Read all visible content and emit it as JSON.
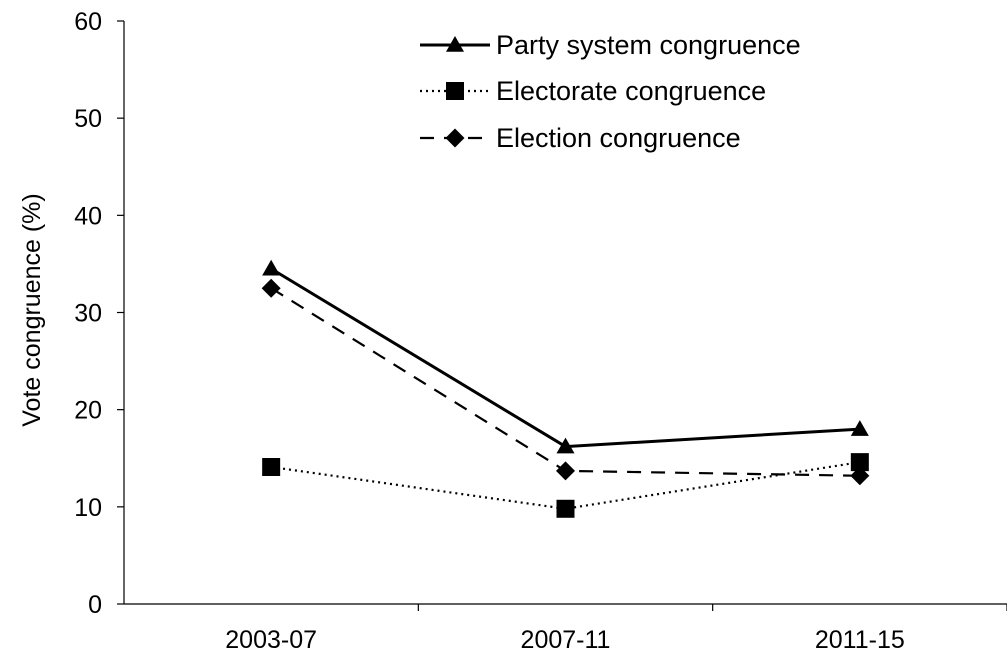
{
  "chart_data": {
    "type": "line",
    "categories": [
      "2003-07",
      "2007-11",
      "2011-15"
    ],
    "ylabel": "Vote congruence (%)",
    "xlabel": "",
    "ylim": [
      0,
      60
    ],
    "yticks": [
      0,
      10,
      20,
      30,
      40,
      50,
      60
    ],
    "grid": false,
    "legend_position": "top-right",
    "series": [
      {
        "name": "Party system congruence",
        "values": [
          34.5,
          16.2,
          18.0
        ],
        "line_style": "solid",
        "marker": "triangle",
        "color": "#000000"
      },
      {
        "name": "Electorate congruence",
        "values": [
          14.1,
          9.8,
          14.6
        ],
        "line_style": "dotted",
        "marker": "square",
        "color": "#000000"
      },
      {
        "name": "Election congruence",
        "values": [
          32.5,
          13.7,
          13.2
        ],
        "line_style": "dashed",
        "marker": "diamond",
        "color": "#000000"
      }
    ]
  }
}
